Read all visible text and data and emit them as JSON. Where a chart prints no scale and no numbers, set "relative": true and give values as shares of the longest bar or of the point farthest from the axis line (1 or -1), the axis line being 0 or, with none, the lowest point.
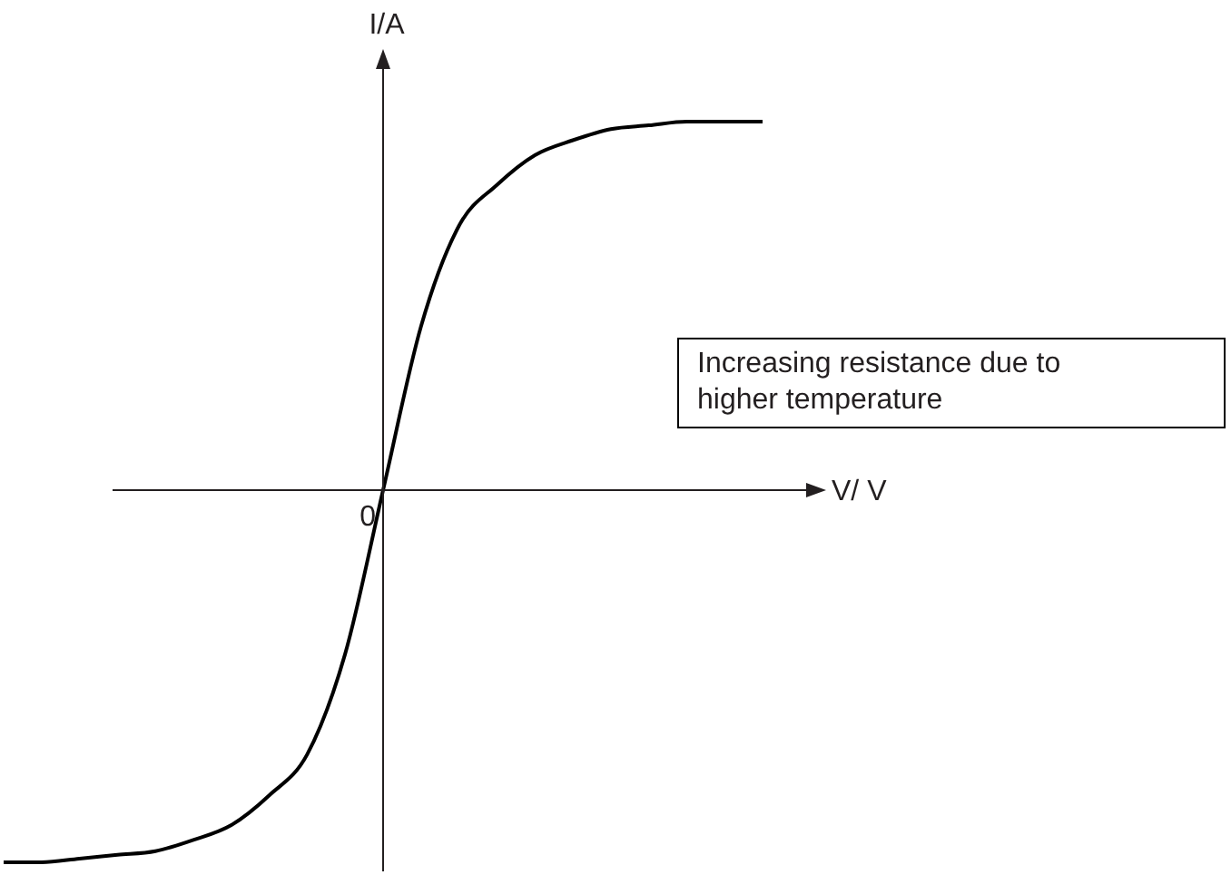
{
  "chart_data": {
    "type": "line",
    "relative": true,
    "xlabel": "V/ V",
    "ylabel": "I/A",
    "categories": [
      null,
      null,
      null,
      null,
      null,
      null,
      null,
      null,
      null,
      null,
      null,
      null,
      null,
      null,
      null,
      null,
      null,
      null,
      null,
      null,
      null
    ],
    "series": [
      {
        "color": "#000000",
        "values": [
          -1,
          -1,
          -0.99,
          -0.98,
          -0.97,
          -0.94,
          -0.9,
          -0.82,
          -0.71,
          -0.44,
          0,
          0.44,
          0.71,
          0.82,
          0.9,
          0.94,
          0.97,
          0.98,
          0.99,
          0.99,
          0.99
        ]
      }
    ],
    "annotations": [
      "Increasing resistance due to higher temperature",
      "0"
    ]
  }
}
